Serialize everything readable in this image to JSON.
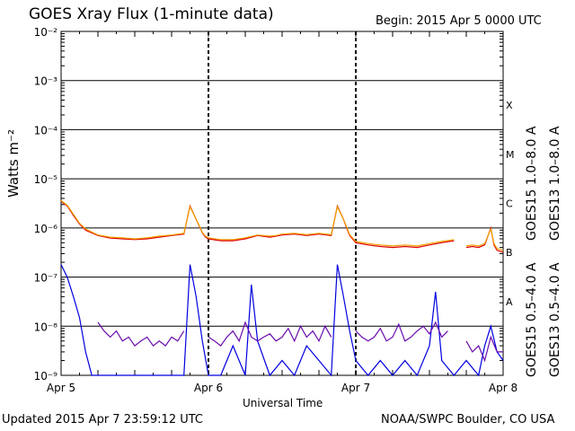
{
  "header": {
    "title": "GOES Xray Flux (1-minute data)",
    "begin": "Begin:  2015 Apr 5 0000 UTC"
  },
  "footer": {
    "updated": "Updated 2015 Apr  7 23:59:12 UTC",
    "credit": "NOAA/SWPC Boulder, CO USA"
  },
  "chart_data": {
    "type": "line",
    "title": "GOES Xray Flux (1-minute data)",
    "xlabel": "Universal Time",
    "ylabel": "Watts m⁻²",
    "yscale": "log",
    "ylim": [
      1e-09,
      0.01
    ],
    "xlim": [
      0,
      72
    ],
    "x_unit": "hours since 2015 Apr 5 0000 UTC",
    "x_ticks": [
      {
        "value": 0,
        "label": "Apr 5"
      },
      {
        "value": 24,
        "label": "Apr 6"
      },
      {
        "value": 48,
        "label": "Apr 7"
      },
      {
        "value": 72,
        "label": "Apr 8"
      }
    ],
    "y_ticks": [
      {
        "value": 1e-09,
        "label": "10⁻⁹"
      },
      {
        "value": 1e-08,
        "label": "10⁻⁸"
      },
      {
        "value": 1e-07,
        "label": "10⁻⁷"
      },
      {
        "value": 1e-06,
        "label": "10⁻⁶"
      },
      {
        "value": 1e-05,
        "label": "10⁻⁵"
      },
      {
        "value": 0.0001,
        "label": "10⁻⁴"
      },
      {
        "value": 0.001,
        "label": "10⁻³"
      },
      {
        "value": 0.01,
        "label": "10⁻²"
      }
    ],
    "flare_classes": [
      {
        "label": "A",
        "value": 1e-08
      },
      {
        "label": "B",
        "value": 1e-07
      },
      {
        "label": "C",
        "value": 1e-06
      },
      {
        "label": "M",
        "value": 1e-05
      },
      {
        "label": "X",
        "value": 0.0001
      }
    ],
    "grid": true,
    "series": [
      {
        "name": "GOES15 1.0–8.0 A",
        "color": "#e00000",
        "x": [
          0,
          1,
          2,
          3,
          4,
          6,
          8,
          10,
          12,
          14,
          16,
          18,
          20,
          21,
          22,
          23,
          23.5,
          24,
          26,
          28,
          30,
          32,
          34,
          35,
          36,
          38,
          40,
          42,
          44,
          45,
          46,
          46.5,
          47,
          48,
          50,
          52,
          54,
          56,
          58,
          60,
          62,
          64,
          65,
          66,
          67,
          68,
          69,
          70,
          70.5,
          71,
          72
        ],
        "y": [
          3.5e-06,
          2.8e-06,
          1.8e-06,
          1.2e-06,
          9e-07,
          7e-07,
          6.2e-07,
          6e-07,
          5.8e-07,
          6e-07,
          6.5e-07,
          7e-07,
          7.5e-07,
          2.8e-06,
          1.5e-06,
          8e-07,
          6.5e-07,
          6e-07,
          5.5e-07,
          5.5e-07,
          6e-07,
          7e-07,
          6.5e-07,
          6.8e-07,
          7.2e-07,
          7.5e-07,
          7e-07,
          7.5e-07,
          7e-07,
          2.8e-06,
          1.5e-06,
          1e-06,
          7e-07,
          5e-07,
          4.5e-07,
          4.2e-07,
          4e-07,
          4.2e-07,
          4e-07,
          4.5e-07,
          5e-07,
          5.5e-07,
          null,
          4e-07,
          4.2e-07,
          4e-07,
          4.5e-07,
          1e-06,
          4.5e-07,
          3.5e-07,
          3.2e-07
        ]
      },
      {
        "name": "GOES13 1.0–8.0 A",
        "color": "#f0a000",
        "x": [
          0,
          1,
          2,
          3,
          4,
          6,
          8,
          10,
          12,
          14,
          16,
          18,
          20,
          21,
          22,
          23,
          23.5,
          24,
          26,
          28,
          30,
          32,
          34,
          35,
          36,
          38,
          40,
          42,
          44,
          45,
          46,
          46.5,
          47,
          48,
          50,
          52,
          54,
          56,
          58,
          60,
          62,
          64,
          65,
          66,
          67,
          68,
          69,
          70,
          70.5,
          71,
          72
        ],
        "y": [
          3.6e-06,
          2.9e-06,
          1.9e-06,
          1.25e-06,
          9.5e-07,
          7.2e-07,
          6.5e-07,
          6.3e-07,
          6e-07,
          6.3e-07,
          6.8e-07,
          7.2e-07,
          7.8e-07,
          2.7e-06,
          1.5e-06,
          8.2e-07,
          6.8e-07,
          6.3e-07,
          5.8e-07,
          5.8e-07,
          6.3e-07,
          7.2e-07,
          6.8e-07,
          7e-07,
          7.5e-07,
          7.8e-07,
          7.3e-07,
          7.8e-07,
          7.3e-07,
          2.7e-06,
          1.5e-06,
          1.05e-06,
          7.3e-07,
          5.3e-07,
          4.8e-07,
          4.5e-07,
          4.3e-07,
          4.5e-07,
          4.3e-07,
          4.8e-07,
          5.3e-07,
          5.8e-07,
          null,
          4.3e-07,
          4.5e-07,
          4.3e-07,
          4.8e-07,
          9.5e-07,
          4.8e-07,
          3.8e-07,
          3.5e-07
        ]
      },
      {
        "name": "GOES15 0.5–4.0 A",
        "color": "#0000e0",
        "x": [
          0,
          1,
          2,
          3,
          4,
          5,
          6,
          8,
          10,
          12,
          14,
          16,
          18,
          20,
          21,
          22,
          23,
          24,
          26,
          28,
          30,
          31,
          32,
          34,
          36,
          38,
          40,
          42,
          44,
          45,
          46,
          47,
          48,
          50,
          52,
          54,
          56,
          58,
          60,
          61,
          62,
          64,
          66,
          68,
          69,
          70,
          71,
          72
        ],
        "y": [
          1.8e-07,
          1e-07,
          4e-08,
          1.5e-08,
          3e-09,
          1e-09,
          1e-09,
          1e-09,
          1e-09,
          1e-09,
          1e-09,
          1e-09,
          1e-09,
          1e-09,
          1.8e-07,
          4e-08,
          5e-09,
          1e-09,
          1e-09,
          4e-09,
          1e-09,
          7e-08,
          5e-09,
          1e-09,
          2e-09,
          1e-09,
          4e-09,
          2e-09,
          1e-09,
          1.8e-07,
          4e-08,
          8e-09,
          2e-09,
          1e-09,
          2e-09,
          1e-09,
          2e-09,
          1e-09,
          4e-09,
          5e-08,
          2e-09,
          1e-09,
          2e-09,
          1e-09,
          4e-09,
          1e-08,
          3e-09,
          2e-09
        ]
      },
      {
        "name": "GOES13 0.5–4.0 A",
        "color": "#6a0dad",
        "x": [
          0,
          2,
          4,
          5,
          6,
          7,
          8,
          9,
          10,
          11,
          12,
          13,
          14,
          15,
          16,
          17,
          18,
          19,
          20,
          21,
          22,
          23,
          24,
          25,
          26,
          27,
          28,
          29,
          30,
          31,
          32,
          33,
          34,
          35,
          36,
          37,
          38,
          39,
          40,
          41,
          42,
          43,
          44,
          45,
          46,
          47,
          48,
          49,
          50,
          51,
          52,
          53,
          54,
          55,
          56,
          57,
          58,
          59,
          60,
          61,
          62,
          63,
          64,
          65,
          66,
          67,
          68,
          69,
          70,
          71,
          72
        ],
        "y": [
          null,
          null,
          null,
          null,
          1.2e-08,
          8e-09,
          6e-09,
          8e-09,
          5e-09,
          6e-09,
          4e-09,
          5e-09,
          6e-09,
          4e-09,
          5e-09,
          4e-09,
          6e-09,
          5e-09,
          8e-09,
          null,
          null,
          null,
          6e-09,
          5e-09,
          4e-09,
          6e-09,
          8e-09,
          5e-09,
          1.2e-08,
          6e-09,
          5e-09,
          6e-09,
          7e-09,
          5e-09,
          6e-09,
          9e-09,
          5e-09,
          1e-08,
          6e-09,
          8e-09,
          5e-09,
          1e-08,
          6e-09,
          null,
          null,
          null,
          8e-09,
          6e-09,
          5e-09,
          6e-09,
          9e-09,
          5e-09,
          6e-09,
          1.1e-08,
          5e-09,
          6e-09,
          8e-09,
          1e-08,
          7e-09,
          1.2e-08,
          6e-09,
          8e-09,
          null,
          null,
          5e-09,
          3e-09,
          4e-09,
          2e-09,
          6e-09,
          3e-09,
          3e-09
        ]
      }
    ]
  }
}
